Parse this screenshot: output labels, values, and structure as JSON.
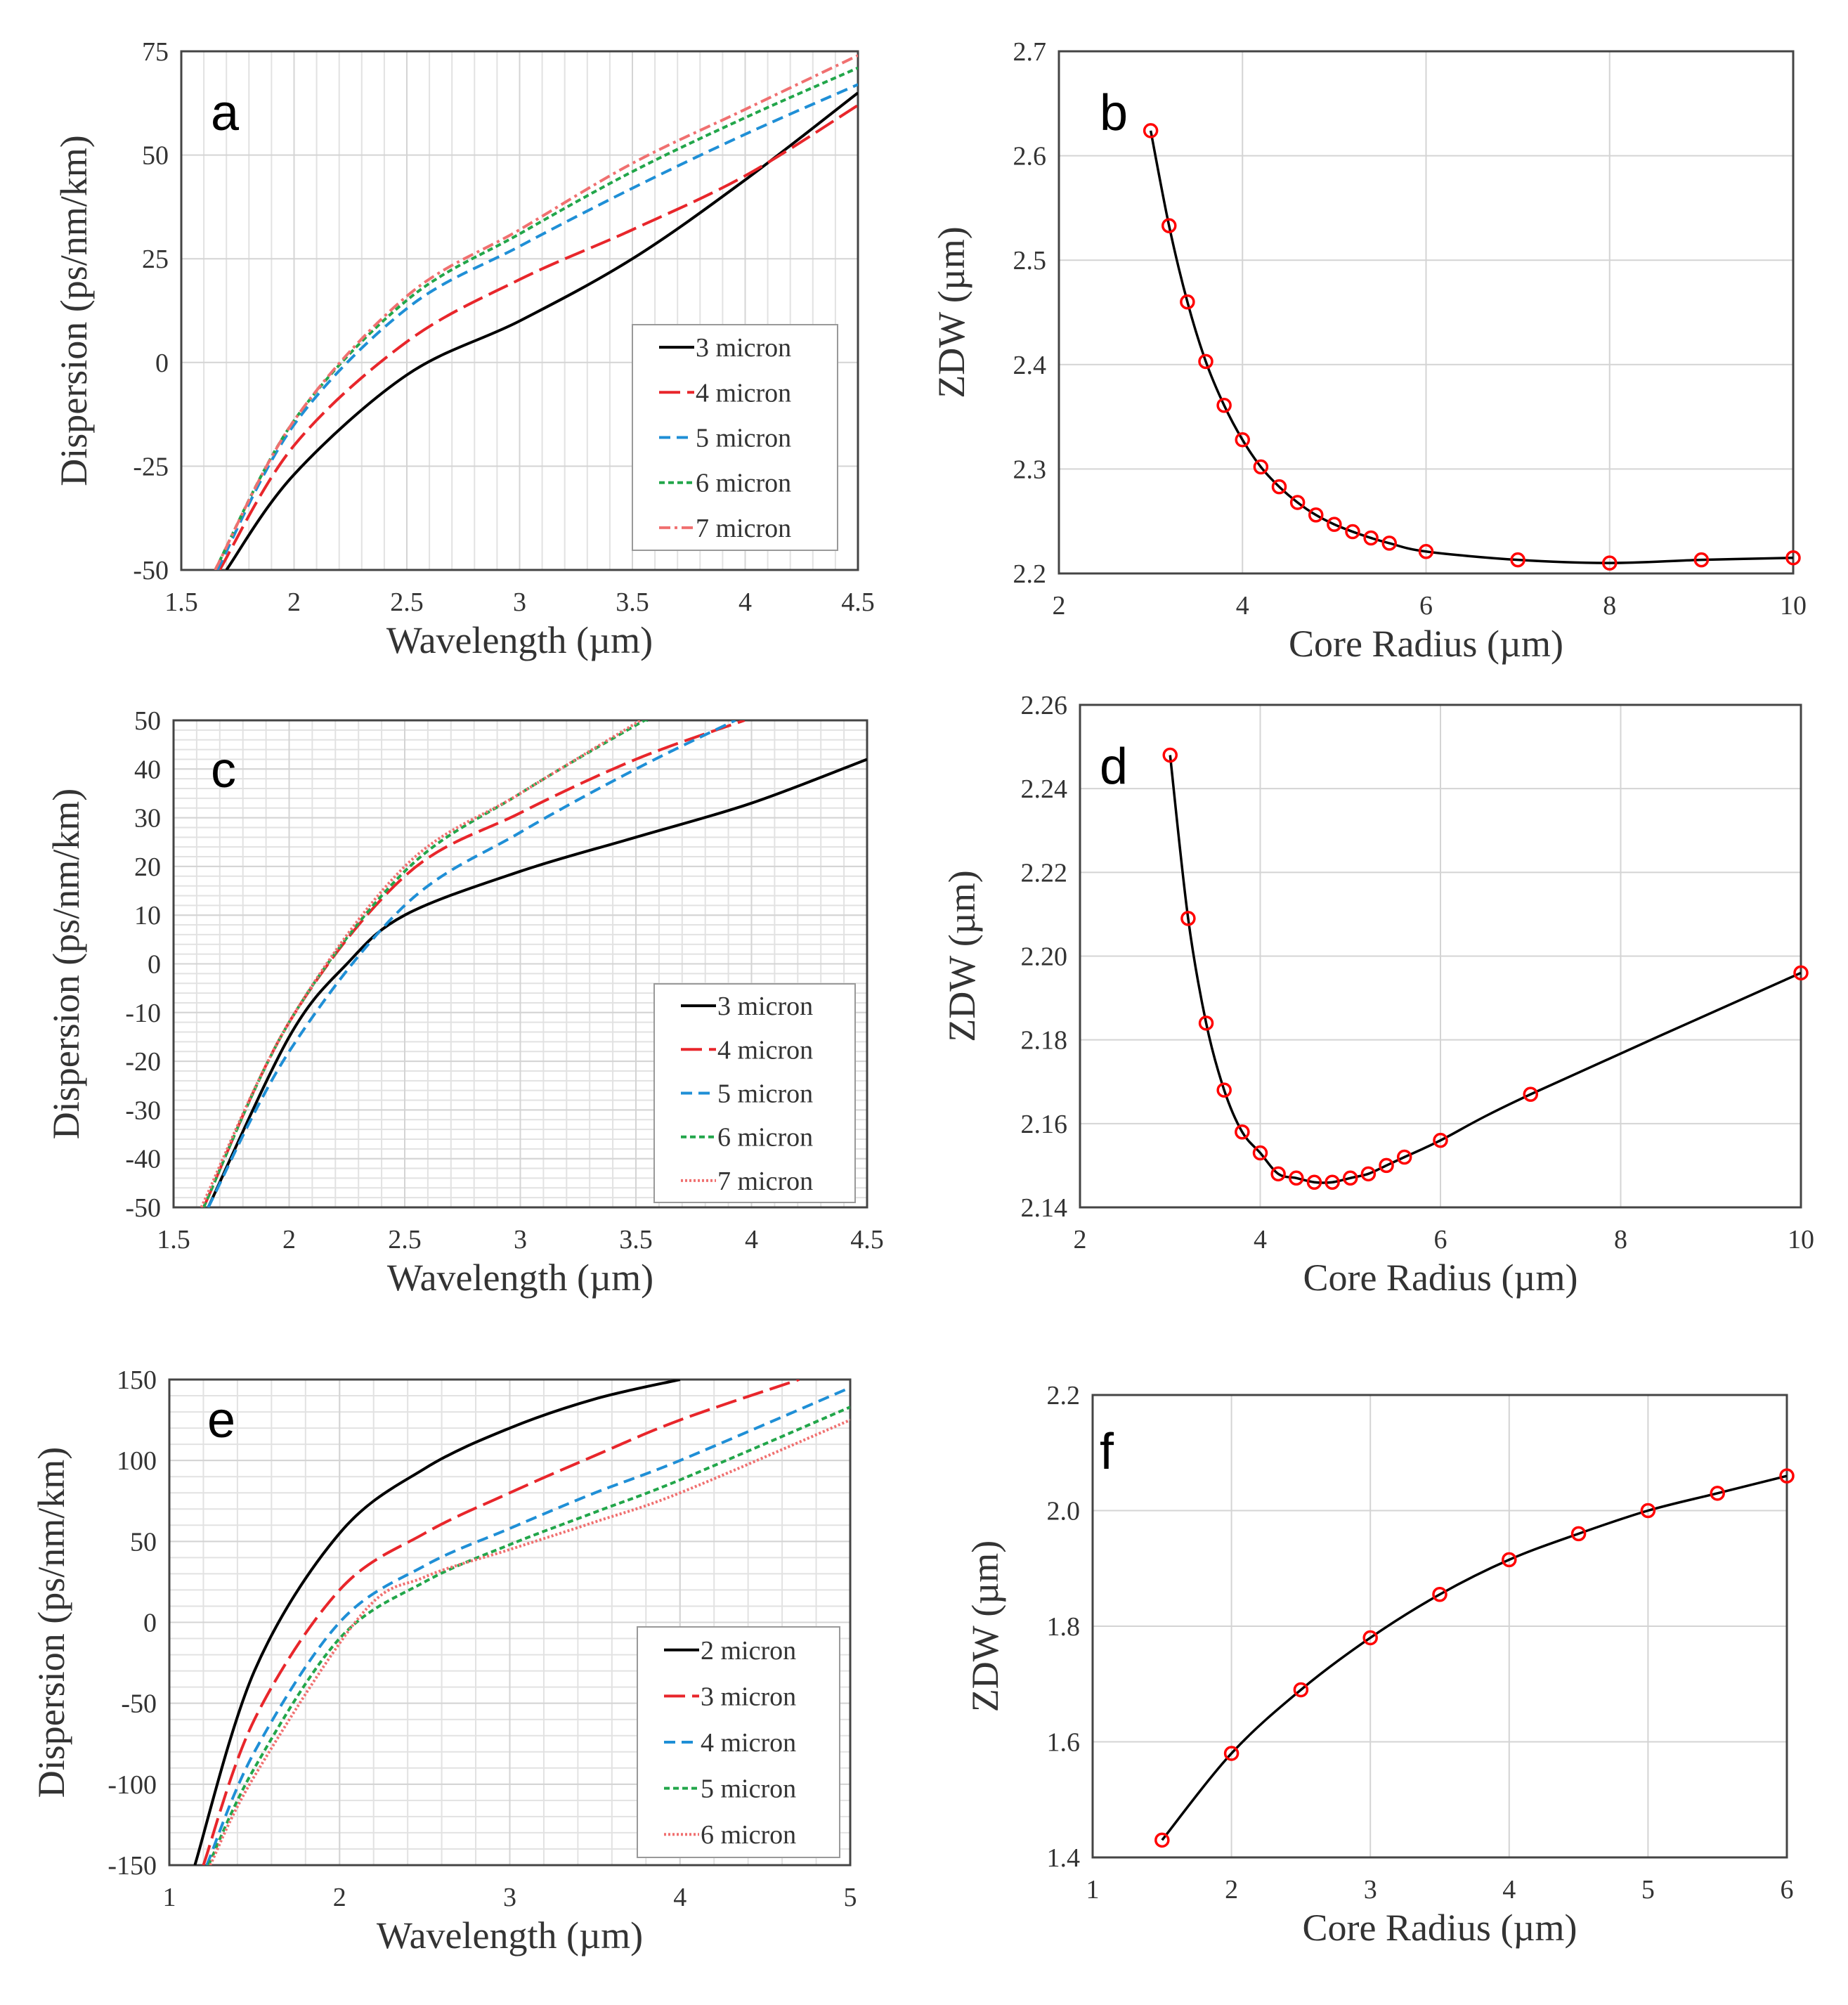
{
  "colors": {
    "black": "#000000",
    "red": "#e8262b",
    "blue": "#1f8fd6",
    "green": "#22a64a",
    "pink": "#f07070",
    "marker": "#ff0000"
  },
  "chart_data": [
    {
      "panel": "a",
      "type": "line",
      "xlabel": "Wavelength (µm)",
      "ylabel": "Dispersion (ps/nm/km)",
      "xlim": [
        1.5,
        4.5
      ],
      "ylim": [
        -50,
        75
      ],
      "xticks": [
        1.5,
        2,
        2.5,
        3,
        3.5,
        4,
        4.5
      ],
      "yticks": [
        -50,
        -25,
        0,
        25,
        50,
        75
      ],
      "xtick_labels": [
        "1.5",
        "2",
        "2.5",
        "3",
        "3.5",
        "4",
        "4.5"
      ],
      "ytick_labels": [
        "-50",
        "-25",
        "0",
        "25",
        "50",
        "75"
      ],
      "legend": "bottom-right",
      "grid": "minor-x",
      "series": [
        {
          "name": "3 micron",
          "color": "#000000",
          "style": "solid",
          "x": [
            1.7,
            2,
            2.5,
            3,
            3.5,
            4,
            4.5
          ],
          "y": [
            -50,
            -27,
            -3,
            10,
            25,
            44,
            65
          ]
        },
        {
          "name": "4 micron",
          "color": "#e8262b",
          "style": "longdash",
          "x": [
            1.67,
            2,
            2.5,
            3,
            3.5,
            4,
            4.5
          ],
          "y": [
            -50,
            -20,
            5,
            20,
            32,
            45,
            62
          ]
        },
        {
          "name": "5 micron",
          "color": "#1f8fd6",
          "style": "dash",
          "x": [
            1.66,
            2,
            2.5,
            3,
            3.5,
            4,
            4.5
          ],
          "y": [
            -50,
            -15,
            13,
            28,
            42,
            55,
            67
          ]
        },
        {
          "name": "6 micron",
          "color": "#22a64a",
          "style": "dot",
          "x": [
            1.65,
            2,
            2.5,
            3,
            3.5,
            4,
            4.5
          ],
          "y": [
            -50,
            -14,
            15,
            31,
            46,
            59,
            71
          ]
        },
        {
          "name": "7 micron",
          "color": "#f07070",
          "style": "dashdot",
          "x": [
            1.65,
            2,
            2.5,
            3,
            3.5,
            4,
            4.5
          ],
          "y": [
            -50,
            -14,
            16,
            32,
            48,
            61,
            74
          ]
        }
      ]
    },
    {
      "panel": "b",
      "type": "line",
      "xlabel": "Core Radius (µm)",
      "ylabel": "ZDW (µm)",
      "xlim": [
        2,
        10
      ],
      "ylim": [
        2.2,
        2.7
      ],
      "xticks": [
        2,
        4,
        6,
        8,
        10
      ],
      "yticks": [
        2.2,
        2.3,
        2.4,
        2.5,
        2.6,
        2.7
      ],
      "xtick_labels": [
        "2",
        "4",
        "6",
        "8",
        "10"
      ],
      "ytick_labels": [
        "2.2",
        "2.3",
        "2.4",
        "2.5",
        "2.6",
        "2.7"
      ],
      "grid": "major",
      "series": [
        {
          "name": "ZDW",
          "color": "#000000",
          "style": "solid",
          "markers": true,
          "x": [
            3,
            3.2,
            3.4,
            3.6,
            3.8,
            4,
            4.2,
            4.4,
            4.6,
            4.8,
            5,
            5.2,
            5.4,
            5.6,
            6,
            7,
            8,
            9,
            10
          ],
          "y": [
            2.624,
            2.533,
            2.46,
            2.403,
            2.361,
            2.328,
            2.302,
            2.283,
            2.268,
            2.256,
            2.247,
            2.24,
            2.234,
            2.229,
            2.221,
            2.213,
            2.21,
            2.213,
            2.215
          ]
        }
      ]
    },
    {
      "panel": "c",
      "type": "line",
      "xlabel": "Wavelength (µm)",
      "ylabel": "Dispersion (ps/nm/km)",
      "xlim": [
        1.5,
        4.5
      ],
      "ylim": [
        -50,
        50
      ],
      "xticks": [
        1.5,
        2,
        2.5,
        3,
        3.5,
        4,
        4.5
      ],
      "yticks": [
        -50,
        -40,
        -30,
        -20,
        -10,
        0,
        10,
        20,
        30,
        40,
        50
      ],
      "xtick_labels": [
        "1.5",
        "2",
        "2.5",
        "3",
        "3.5",
        "4",
        "4.5"
      ],
      "ytick_labels": [
        "-50",
        "-40",
        "-30",
        "-20",
        "-10",
        "0",
        "10",
        "20",
        "30",
        "40",
        "50"
      ],
      "legend": "bottom-right",
      "grid": "minor-xy",
      "series": [
        {
          "name": "3 micron",
          "color": "#000000",
          "style": "solid",
          "x": [
            1.65,
            2,
            2.25,
            2.5,
            3,
            3.5,
            4,
            4.5
          ],
          "y": [
            -50,
            -15,
            0,
            10,
            19,
            26,
            33,
            42
          ]
        },
        {
          "name": "4 micron",
          "color": "#e8262b",
          "style": "longdash",
          "x": [
            1.63,
            2,
            2.5,
            3,
            3.5,
            3.97
          ],
          "y": [
            -50,
            -12,
            18,
            31,
            42,
            50
          ]
        },
        {
          "name": "5 micron",
          "color": "#1f8fd6",
          "style": "dash",
          "x": [
            1.65,
            2,
            2.5,
            3,
            3.5,
            3.93
          ],
          "y": [
            -50,
            -18,
            12,
            27,
            40,
            50
          ]
        },
        {
          "name": "6 micron",
          "color": "#22a64a",
          "style": "dot",
          "x": [
            1.63,
            2,
            2.5,
            3,
            3.5,
            3.55
          ],
          "y": [
            -50,
            -12,
            19,
            35,
            49,
            50
          ]
        },
        {
          "name": "7 micron",
          "color": "#f07070",
          "style": "fine",
          "x": [
            1.62,
            2,
            2.5,
            3,
            3.52
          ],
          "y": [
            -50,
            -12,
            20,
            35,
            50
          ]
        }
      ]
    },
    {
      "panel": "d",
      "type": "line",
      "xlabel": "Core Radius (µm)",
      "ylabel": "ZDW (µm)",
      "xlim": [
        2,
        10
      ],
      "ylim": [
        2.14,
        2.26
      ],
      "xticks": [
        2,
        4,
        6,
        8,
        10
      ],
      "yticks": [
        2.14,
        2.16,
        2.18,
        2.2,
        2.22,
        2.24,
        2.26
      ],
      "xtick_labels": [
        "2",
        "4",
        "6",
        "8",
        "10"
      ],
      "ytick_labels": [
        "2.14",
        "2.16",
        "2.18",
        "2.20",
        "2.22",
        "2.24",
        "2.26"
      ],
      "grid": "major",
      "series": [
        {
          "name": "ZDW",
          "color": "#000000",
          "style": "solid",
          "markers": true,
          "x": [
            3,
            3.2,
            3.4,
            3.6,
            3.8,
            4,
            4.2,
            4.4,
            4.6,
            4.8,
            5,
            5.2,
            5.4,
            5.6,
            6,
            7,
            10
          ],
          "y": [
            2.248,
            2.209,
            2.184,
            2.168,
            2.158,
            2.153,
            2.148,
            2.147,
            2.146,
            2.146,
            2.147,
            2.148,
            2.15,
            2.152,
            2.156,
            2.167,
            2.196
          ]
        }
      ]
    },
    {
      "panel": "e",
      "type": "line",
      "xlabel": "Wavelength (µm)",
      "ylabel": "Dispersion (ps/nm/km)",
      "xlim": [
        1,
        5
      ],
      "ylim": [
        -150,
        150
      ],
      "xticks": [
        1,
        2,
        3,
        4,
        5
      ],
      "yticks": [
        -150,
        -100,
        -50,
        0,
        50,
        100,
        150
      ],
      "xtick_labels": [
        "1",
        "2",
        "3",
        "4",
        "5"
      ],
      "ytick_labels": [
        "-150",
        "-100",
        "-50",
        "0",
        "50",
        "100",
        "150"
      ],
      "legend": "bottom-right",
      "grid": "minor-xy",
      "series": [
        {
          "name": "2 micron",
          "color": "#000000",
          "style": "solid",
          "x": [
            1.15,
            1.5,
            2,
            2.5,
            3,
            3.5,
            4
          ],
          "y": [
            -150,
            -30,
            55,
            95,
            120,
            138,
            150
          ]
        },
        {
          "name": "3 micron",
          "color": "#e8262b",
          "style": "longdash",
          "x": [
            1.2,
            1.5,
            2,
            2.5,
            3,
            3.5,
            4,
            4.7
          ],
          "y": [
            -150,
            -60,
            20,
            55,
            80,
            103,
            125,
            150
          ]
        },
        {
          "name": "4 micron",
          "color": "#1f8fd6",
          "style": "dash",
          "x": [
            1.22,
            1.5,
            2,
            2.5,
            3,
            3.5,
            4,
            5
          ],
          "y": [
            -150,
            -80,
            0,
            35,
            58,
            80,
            100,
            145
          ]
        },
        {
          "name": "5 micron",
          "color": "#22a64a",
          "style": "dot",
          "x": [
            1.23,
            1.5,
            2,
            2.5,
            3,
            3.5,
            4,
            5
          ],
          "y": [
            -150,
            -90,
            -10,
            25,
            48,
            68,
            88,
            133
          ]
        },
        {
          "name": "6 micron",
          "color": "#f07070",
          "style": "fine",
          "x": [
            1.24,
            1.5,
            2.13,
            2.5,
            3,
            3.5,
            4,
            5
          ],
          "y": [
            -150,
            -95,
            5,
            28,
            45,
            62,
            80,
            125
          ]
        }
      ]
    },
    {
      "panel": "f",
      "type": "line",
      "xlabel": "Core Radius (µm)",
      "ylabel": "ZDW (µm)",
      "xlim": [
        1,
        6
      ],
      "ylim": [
        1.4,
        2.2
      ],
      "xticks": [
        1,
        2,
        3,
        4,
        5,
        6
      ],
      "yticks": [
        1.4,
        1.6,
        1.8,
        2.0,
        2.2
      ],
      "xtick_labels": [
        "1",
        "2",
        "3",
        "4",
        "5",
        "6"
      ],
      "ytick_labels": [
        "1.4",
        "1.6",
        "1.8",
        "2.0",
        "2.2"
      ],
      "grid": "major",
      "series": [
        {
          "name": "ZDW",
          "color": "#000000",
          "style": "solid",
          "markers": true,
          "x": [
            1.5,
            2,
            2.5,
            3,
            3.5,
            4,
            4.5,
            5,
            5.5,
            6
          ],
          "y": [
            1.43,
            1.58,
            1.69,
            1.78,
            1.855,
            1.915,
            1.96,
            2.0,
            2.03,
            2.06
          ]
        }
      ]
    }
  ]
}
